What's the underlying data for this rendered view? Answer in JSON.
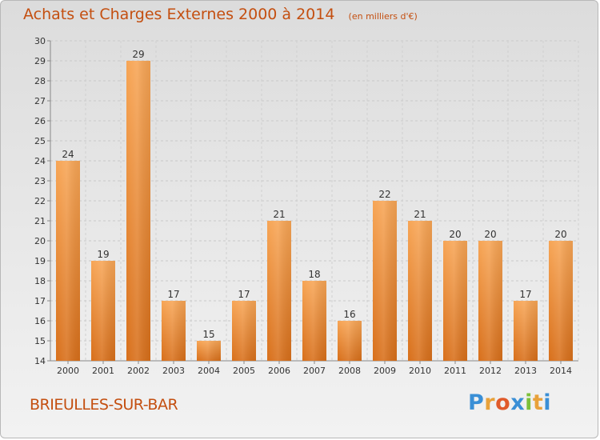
{
  "header": {
    "title": "Achats et Charges Externes 2000 à 2014",
    "unit_note": "(en milliers d'€)"
  },
  "footer": {
    "town": "BRIEULLES-SUR-BAR",
    "brand_letters": [
      "P",
      "r",
      "o",
      "x",
      "i",
      "t",
      "i"
    ],
    "brand_colors": [
      "#3a8fd6",
      "#e8a13a",
      "#e05a2a",
      "#3a8fd6",
      "#7cc03a",
      "#e8a13a",
      "#3a8fd6"
    ]
  },
  "chart_data": {
    "type": "bar",
    "title": "Achats et Charges Externes 2000 à 2014",
    "subtitle": "(en milliers d'€)",
    "categories": [
      "2000",
      "2001",
      "2002",
      "2003",
      "2004",
      "2005",
      "2006",
      "2007",
      "2008",
      "2009",
      "2010",
      "2011",
      "2012",
      "2013",
      "2014"
    ],
    "values": [
      24,
      19,
      29,
      17,
      15,
      17,
      21,
      18,
      16,
      22,
      21,
      20,
      20,
      17,
      20
    ],
    "ylim": [
      14,
      30
    ],
    "yticks": [
      14,
      15,
      16,
      17,
      18,
      19,
      20,
      21,
      22,
      23,
      24,
      25,
      26,
      27,
      28,
      29,
      30
    ],
    "grid": true,
    "bar_color_top": "#f7a555",
    "bar_color_bottom": "#d86f1a",
    "text_color": "#c44f10"
  }
}
